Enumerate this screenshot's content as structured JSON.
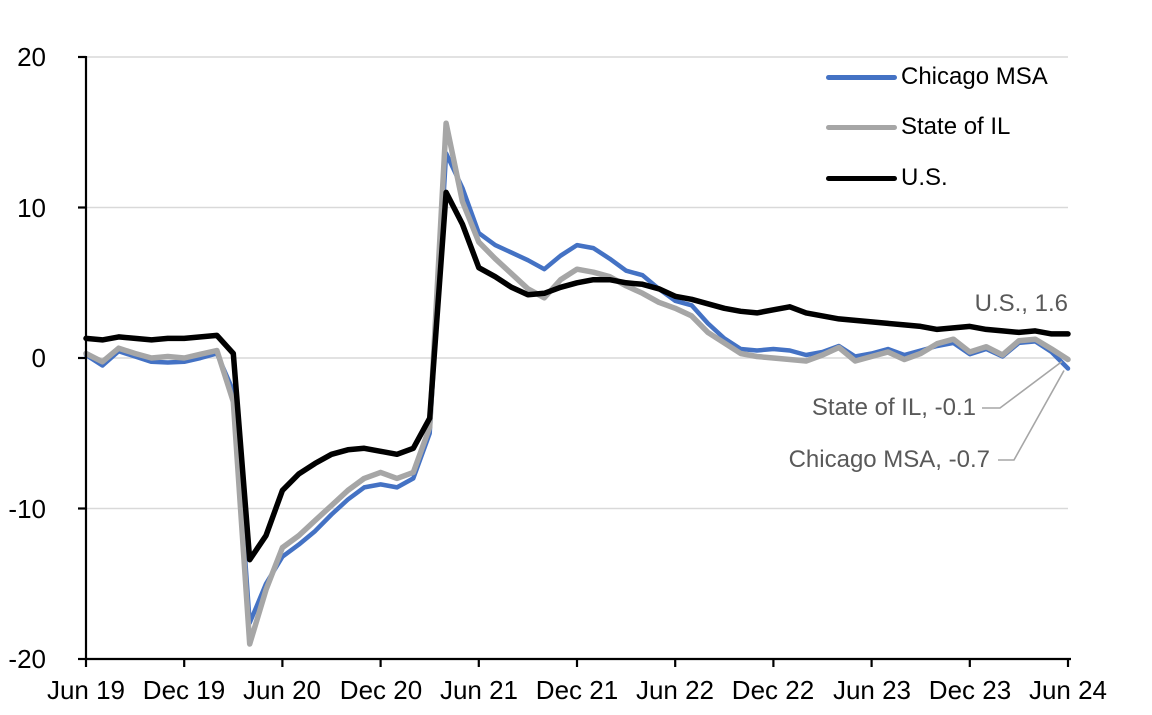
{
  "chart_data": {
    "type": "line",
    "x_axis": {
      "frequency": "monthly",
      "range": "Jun 2019 to Jun 2024",
      "points_per_series": 61,
      "tick_labels": [
        "Jun 19",
        "Dec 19",
        "Jun 20",
        "Dec 20",
        "Jun 21",
        "Dec 21",
        "Jun 22",
        "Dec 22",
        "Jun 23",
        "Dec 23",
        "Jun 24"
      ],
      "tick_every_n_points": 6
    },
    "y_axis": {
      "ticks": [
        20,
        10,
        0,
        -10,
        -20
      ],
      "tick_labels": [
        "20",
        "10",
        "0",
        "-10",
        "-20"
      ],
      "ylim": [
        -20,
        20
      ],
      "grid": true
    },
    "series": [
      {
        "name": "Chicago MSA",
        "color": "#4472C4",
        "width": 4.5,
        "values": [
          0.2,
          -0.5,
          0.45,
          0.1,
          -0.25,
          -0.3,
          -0.25,
          0.0,
          0.3,
          -2.2,
          -17.6,
          -15.0,
          -13.2,
          -12.4,
          -11.5,
          -10.4,
          -9.4,
          -8.6,
          -8.4,
          -8.6,
          -8.0,
          -5.0,
          13.6,
          11.3,
          8.3,
          7.5,
          7.0,
          6.5,
          5.9,
          6.8,
          7.5,
          7.3,
          6.6,
          5.8,
          5.5,
          4.6,
          3.8,
          3.5,
          2.3,
          1.3,
          0.6,
          0.5,
          0.6,
          0.5,
          0.2,
          0.4,
          0.8,
          0.1,
          0.3,
          0.6,
          0.2,
          0.5,
          0.8,
          1.0,
          0.25,
          0.6,
          0.1,
          1.0,
          1.1,
          0.4,
          -0.7
        ]
      },
      {
        "name": "State of IL",
        "color": "#A6A6A6",
        "width": 5.5,
        "values": [
          0.3,
          -0.25,
          0.65,
          0.3,
          0.0,
          0.1,
          0.0,
          0.25,
          0.5,
          -2.9,
          -19.0,
          -15.4,
          -12.6,
          -11.8,
          -10.8,
          -9.8,
          -8.8,
          -8.0,
          -7.6,
          -8.0,
          -7.6,
          -4.6,
          15.6,
          10.4,
          7.7,
          6.6,
          5.6,
          4.6,
          4.0,
          5.2,
          5.9,
          5.7,
          5.4,
          4.8,
          4.3,
          3.7,
          3.3,
          2.8,
          1.7,
          1.0,
          0.3,
          0.1,
          0.0,
          -0.1,
          -0.2,
          0.2,
          0.7,
          -0.2,
          0.1,
          0.4,
          -0.1,
          0.3,
          0.95,
          1.25,
          0.4,
          0.75,
          0.2,
          1.15,
          1.25,
          0.6,
          -0.1
        ]
      },
      {
        "name": "U.S.",
        "color": "#000000",
        "width": 5.5,
        "values": [
          1.3,
          1.2,
          1.4,
          1.3,
          1.2,
          1.3,
          1.3,
          1.4,
          1.5,
          0.3,
          -13.4,
          -11.8,
          -8.8,
          -7.7,
          -7.0,
          -6.4,
          -6.1,
          -6.0,
          -6.2,
          -6.4,
          -6.0,
          -4.0,
          11.0,
          8.9,
          6.0,
          5.4,
          4.7,
          4.2,
          4.3,
          4.7,
          5.0,
          5.2,
          5.2,
          5.0,
          4.9,
          4.6,
          4.1,
          3.9,
          3.6,
          3.3,
          3.1,
          3.0,
          3.2,
          3.4,
          3.0,
          2.8,
          2.6,
          2.5,
          2.4,
          2.3,
          2.2,
          2.1,
          1.9,
          2.0,
          2.1,
          1.9,
          1.8,
          1.7,
          1.8,
          1.6,
          1.6
        ]
      }
    ],
    "legend": {
      "position": "top-right",
      "items": [
        "Chicago MSA",
        "State of IL",
        "U.S."
      ]
    },
    "annotations": [
      {
        "text": "U.S., 1.6",
        "series": "U.S.",
        "value": 1.6
      },
      {
        "text": "State of IL, -0.1",
        "series": "State of IL",
        "value": -0.1
      },
      {
        "text": "Chicago MSA, -0.7",
        "series": "Chicago MSA",
        "value": -0.7
      }
    ],
    "colors": {
      "background": "#FFFFFF",
      "gridline": "#D9D9D9",
      "axis": "#000000",
      "annotation_text": "#595959",
      "leader_line": "#A6A6A6"
    }
  }
}
